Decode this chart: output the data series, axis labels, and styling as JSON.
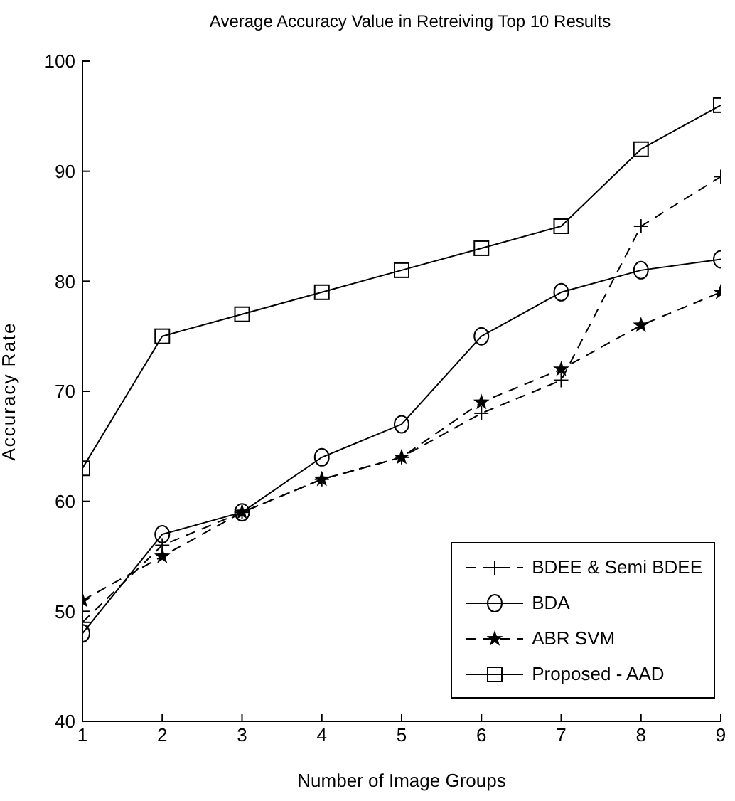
{
  "chart_data": {
    "type": "line",
    "title": "Average Accuracy Value in Retreiving Top 10 Results",
    "xlabel": "Number of Image Groups",
    "ylabel": "Accuracy Rate",
    "x": [
      1,
      2,
      3,
      4,
      5,
      6,
      7,
      8,
      9
    ],
    "xlim": [
      1,
      9
    ],
    "xticks": [
      1,
      2,
      3,
      4,
      5,
      6,
      7,
      8,
      9
    ],
    "ylim": [
      40,
      100
    ],
    "yticks": [
      40,
      50,
      60,
      70,
      80,
      90,
      100
    ],
    "grid": false,
    "legend": "bottom right",
    "series": [
      {
        "name": "BDEE & Semi BDEE",
        "color": "#000000",
        "marker": "cross",
        "line_style": "dashed",
        "values": [
          49,
          56,
          59,
          62,
          64,
          68,
          71,
          85,
          89.5
        ]
      },
      {
        "name": "BDA",
        "color": "#000000",
        "marker": "circle",
        "line_style": "solid",
        "values": [
          48,
          57,
          59,
          64,
          67,
          75,
          79,
          81,
          82
        ]
      },
      {
        "name": "ABR SVM",
        "color": "#000000",
        "marker": "star",
        "line_style": "dashed",
        "values": [
          51,
          55,
          59,
          62,
          64,
          69,
          72,
          76,
          79
        ]
      },
      {
        "name": "Proposed - AAD",
        "color": "#000000",
        "marker": "square",
        "line_style": "solid",
        "values": [
          63,
          75,
          77,
          79,
          81,
          83,
          85,
          92,
          96
        ]
      }
    ]
  }
}
